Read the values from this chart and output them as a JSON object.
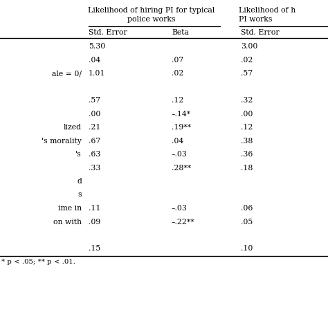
{
  "header1_text": "Likelihood of hiring PI for typical\npolice works",
  "header2_text": "Likelihood of h\nPI works",
  "subheader1": "Std. Error",
  "subheader2": "Beta",
  "subheader3": "Std. Error",
  "rows": [
    {
      "label": "",
      "c1": "5.30",
      "c2": "",
      "c3": "3.00"
    },
    {
      "label": "",
      "c1": ".04",
      "c2": ".07",
      "c3": ".02"
    },
    {
      "label": "ale = 0/",
      "c1": "1.01",
      "c2": ".02",
      "c3": ".57"
    },
    {
      "label": "",
      "c1": "",
      "c2": "",
      "c3": ""
    },
    {
      "label": "",
      "c1": ".57",
      "c2": ".12",
      "c3": ".32"
    },
    {
      "label": "",
      "c1": ".00",
      "c2": "–.14*",
      "c3": ".00"
    },
    {
      "label": "lized",
      "c1": ".21",
      "c2": ".19**",
      "c3": ".12"
    },
    {
      "label": "'s morality",
      "c1": ".67",
      "c2": ".04",
      "c3": ".38"
    },
    {
      "label": "'s",
      "c1": ".63",
      "c2": "–.03",
      "c3": ".36"
    },
    {
      "label": "",
      "c1": ".33",
      "c2": ".28**",
      "c3": ".18"
    },
    {
      "label": "d",
      "c1": "",
      "c2": "",
      "c3": ""
    },
    {
      "label": "s",
      "c1": "",
      "c2": "",
      "c3": ""
    },
    {
      "label": "ime in",
      "c1": ".11",
      "c2": "–.03",
      "c3": ".06"
    },
    {
      "label": "on with",
      "c1": ".09",
      "c2": "–.22**",
      "c3": ".05"
    },
    {
      "label": "",
      "c1": "",
      "c2": "",
      "c3": ""
    },
    {
      "label": "",
      "c1": ".15",
      "c2": "",
      "c3": ".10"
    }
  ],
  "footnote": "* p < .05; ** p < .01.",
  "bg_color": "#ffffff",
  "text_color": "#000000",
  "font_size": 7.8,
  "header_font_size": 7.8
}
